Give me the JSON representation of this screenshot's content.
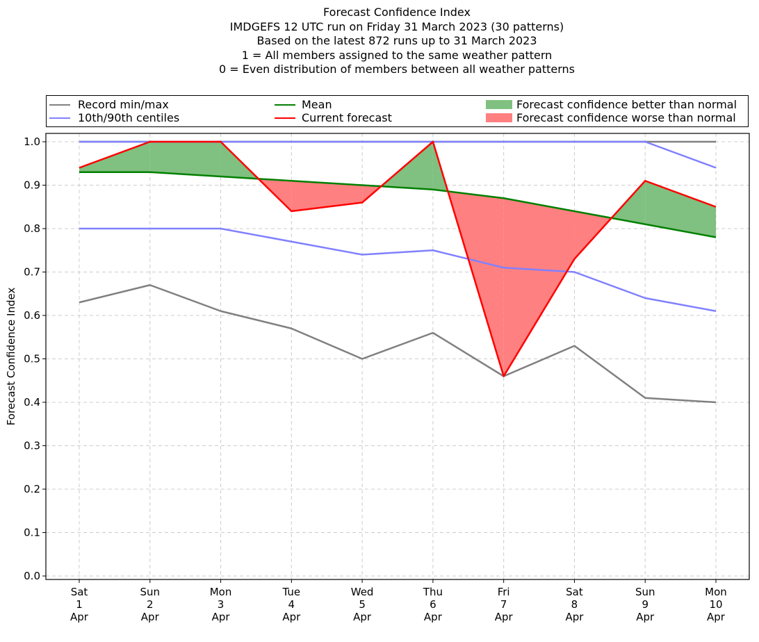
{
  "title_lines": [
    "Forecast Confidence Index",
    "IMDGEFS 12 UTC run on Friday 31 March 2023 (30 patterns)",
    "Based on the latest 872 runs up to 31 March 2023",
    "1 = All members assigned to the same weather pattern",
    "0 = Even distribution of members between all weather patterns"
  ],
  "legend": {
    "record": "Record min/max",
    "centiles": "10th/90th centiles",
    "mean": "Mean",
    "current": "Current forecast",
    "better": "Forecast confidence better than normal",
    "worse": "Forecast confidence worse than normal"
  },
  "colors": {
    "record": "#808080",
    "centiles": "#8080ff",
    "mean": "#008000",
    "current": "#ff0000",
    "better": "#80c080",
    "worse": "#ff8080",
    "grid": "#cccccc"
  },
  "chart_data": {
    "type": "line",
    "title": "Forecast Confidence Index",
    "ylabel": "Forecast Confidence Index",
    "xlabel": "",
    "ylim": [
      0.0,
      1.0
    ],
    "yticks": [
      "0.0",
      "0.1",
      "0.2",
      "0.3",
      "0.4",
      "0.5",
      "0.6",
      "0.7",
      "0.8",
      "0.9",
      "1.0"
    ],
    "grid": true,
    "legend_position": "top",
    "categories": [
      [
        "Sat",
        "1",
        "Apr"
      ],
      [
        "Sun",
        "2",
        "Apr"
      ],
      [
        "Mon",
        "3",
        "Apr"
      ],
      [
        "Tue",
        "4",
        "Apr"
      ],
      [
        "Wed",
        "5",
        "Apr"
      ],
      [
        "Thu",
        "6",
        "Apr"
      ],
      [
        "Fri",
        "7",
        "Apr"
      ],
      [
        "Sat",
        "8",
        "Apr"
      ],
      [
        "Sun",
        "9",
        "Apr"
      ],
      [
        "Mon",
        "10",
        "Apr"
      ]
    ],
    "series": [
      {
        "name": "Record min/max",
        "role": "record_max",
        "values": [
          1.0,
          1.0,
          1.0,
          1.0,
          1.0,
          1.0,
          1.0,
          1.0,
          1.0,
          1.0
        ]
      },
      {
        "name": "Record min/max",
        "role": "record_min",
        "values": [
          0.63,
          0.67,
          0.61,
          0.57,
          0.5,
          0.56,
          0.46,
          0.53,
          0.41,
          0.4
        ]
      },
      {
        "name": "10th/90th centiles",
        "role": "p90",
        "values": [
          1.0,
          1.0,
          1.0,
          1.0,
          1.0,
          1.0,
          1.0,
          1.0,
          1.0,
          0.94
        ]
      },
      {
        "name": "10th/90th centiles",
        "role": "p10",
        "values": [
          0.8,
          0.8,
          0.8,
          0.77,
          0.74,
          0.75,
          0.71,
          0.7,
          0.64,
          0.61
        ]
      },
      {
        "name": "Mean",
        "role": "mean",
        "values": [
          0.93,
          0.93,
          0.92,
          0.91,
          0.9,
          0.89,
          0.87,
          0.84,
          0.81,
          0.78
        ]
      },
      {
        "name": "Current forecast",
        "role": "current",
        "values": [
          0.94,
          1.0,
          1.0,
          0.84,
          0.86,
          1.0,
          0.46,
          0.73,
          0.91,
          0.85
        ]
      }
    ]
  }
}
